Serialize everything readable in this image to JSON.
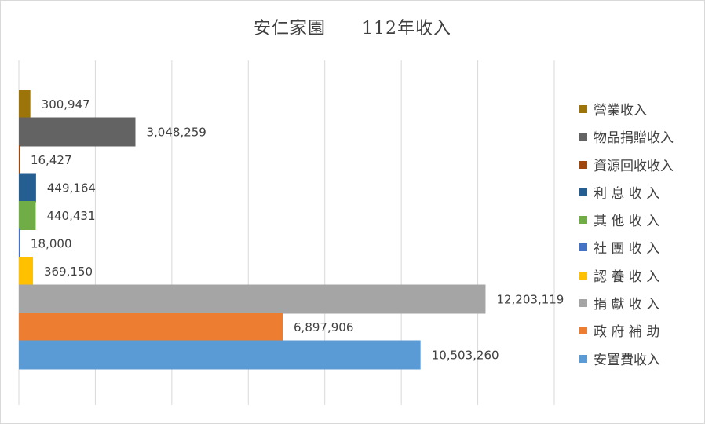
{
  "chart_data": {
    "type": "bar",
    "orientation": "horizontal",
    "title": "安仁家園　　112年收入",
    "xlabel": "",
    "ylabel": "",
    "xlim": [
      0,
      14000000
    ],
    "grid": true,
    "legend_position": "right",
    "series": [
      {
        "name": "營業收入",
        "value": 300947,
        "label": "300,947",
        "color": "#9c7409"
      },
      {
        "name": "物品捐贈收入",
        "value": 3048259,
        "label": "3,048,259",
        "color": "#636363"
      },
      {
        "name": "資源回收收入",
        "value": 16427,
        "label": "16,427",
        "color": "#9e480e"
      },
      {
        "name": "利息收入",
        "value": 449164,
        "label": "449,164",
        "color": "#255e91"
      },
      {
        "name": "其他收入",
        "value": 440431,
        "label": "440,431",
        "color": "#70ad47"
      },
      {
        "name": "社團收入",
        "value": 18000,
        "label": "18,000",
        "color": "#4472c4"
      },
      {
        "name": "認養收入",
        "value": 369150,
        "label": "369,150",
        "color": "#ffc000"
      },
      {
        "name": "捐獻收入",
        "value": 12203119,
        "label": "12,203,119",
        "color": "#a5a5a5"
      },
      {
        "name": "政府補助",
        "value": 6897906,
        "label": "6,897,906",
        "color": "#ed7d31"
      },
      {
        "name": "安置費收入",
        "value": 10503260,
        "label": "10,503,260",
        "color": "#5b9bd5"
      }
    ]
  },
  "legend": {
    "items": [
      {
        "label": "營業收入",
        "color": "#9c7409"
      },
      {
        "label": "物品捐贈收入",
        "color": "#636363"
      },
      {
        "label": "資源回收收入",
        "color": "#9e480e"
      },
      {
        "label": "利 息 收 入",
        "color": "#255e91"
      },
      {
        "label": "其 他 收 入",
        "color": "#70ad47"
      },
      {
        "label": "社 團 收 入",
        "color": "#4472c4"
      },
      {
        "label": "認 養 收 入",
        "color": "#ffc000"
      },
      {
        "label": "捐 獻 收 入",
        "color": "#a5a5a5"
      },
      {
        "label": "政 府 補 助",
        "color": "#ed7d31"
      },
      {
        "label": "安置費收入",
        "color": "#5b9bd5"
      }
    ]
  }
}
